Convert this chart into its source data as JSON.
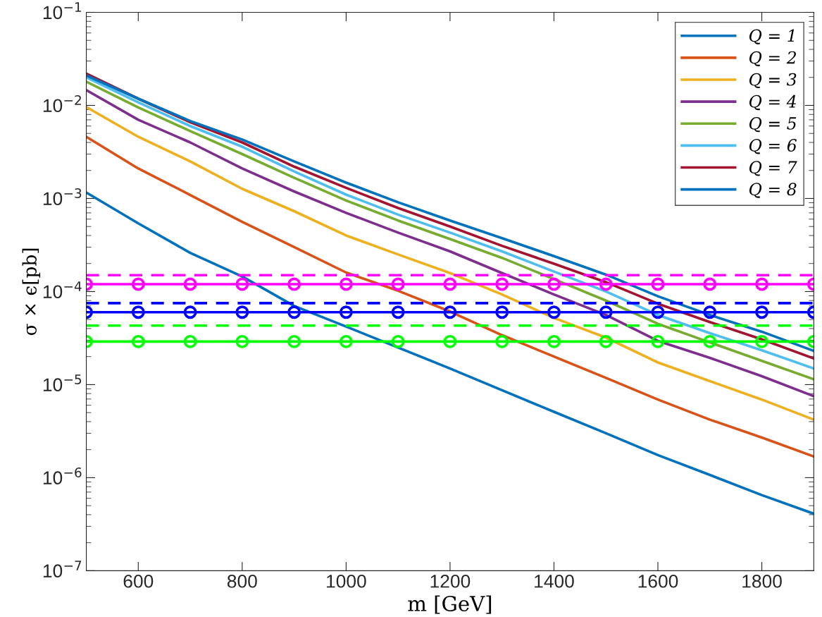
{
  "chart_data": {
    "type": "line",
    "xlabel": "m [GeV]",
    "ylabel": "σ × ϵ[pb]",
    "log": "y",
    "legend": "top right",
    "grid": false,
    "marker": "none",
    "line_style": "solid",
    "x": [
      500,
      600,
      700,
      800,
      900,
      1000,
      1100,
      1200,
      1300,
      1400,
      1500,
      1600,
      1700,
      1800,
      1900
    ],
    "xlim": [
      500,
      1900
    ],
    "xticks": [
      600,
      800,
      1000,
      1200,
      1400,
      1600,
      1800
    ],
    "ylim": [
      1e-07,
      0.1
    ],
    "yticks": [
      {
        "value": 1e-07,
        "label": "10$^{−7}$"
      },
      {
        "value": 1e-06,
        "label": "10$^{−6}$"
      },
      {
        "value": 1e-05,
        "label": "10$^{−5}$"
      },
      {
        "value": 0.0001,
        "label": "10$^{−4}$"
      },
      {
        "value": 0.001,
        "label": "10$^{−3}$"
      },
      {
        "value": 0.01,
        "label": "10$^{−2}$"
      },
      {
        "value": 0.1,
        "label": "10$^{−1}$"
      }
    ],
    "series": [
      {
        "name": "Q = 1",
        "color": "#0072bd",
        "values": [
          0.00116,
          0.00054,
          0.00026,
          0.000145,
          7e-05,
          4.2e-05,
          2.5e-05,
          1.49e-05,
          8.7e-06,
          5.1e-06,
          3e-06,
          1.75e-06,
          1.07e-06,
          6.5e-07,
          4.1e-07
        ]
      },
      {
        "name": "Q = 2",
        "color": "#d95319",
        "values": [
          0.0046,
          0.0021,
          0.00109,
          0.00056,
          0.0003,
          0.00016,
          0.000102,
          6.1e-05,
          3.4e-05,
          2e-05,
          1.18e-05,
          6.9e-06,
          4.2e-06,
          2.7e-06,
          1.69e-06
        ]
      },
      {
        "name": "Q = 3",
        "color": "#edb120",
        "values": [
          0.0096,
          0.0046,
          0.0025,
          0.00127,
          0.00073,
          0.0004,
          0.00025,
          0.000158,
          9.3e-05,
          5.2e-05,
          3.2e-05,
          1.73e-05,
          1.09e-05,
          6.9e-06,
          4.2e-06
        ]
      },
      {
        "name": "Q = 4",
        "color": "#7e2f8e",
        "values": [
          0.0146,
          0.007,
          0.004,
          0.0021,
          0.00119,
          0.0007,
          0.00043,
          0.00027,
          0.000158,
          9.3e-05,
          5.6e-05,
          2.95e-05,
          1.94e-05,
          1.23e-05,
          7.5e-06
        ]
      },
      {
        "name": "Q = 5",
        "color": "#77ac30",
        "values": [
          0.018,
          0.0095,
          0.0053,
          0.003,
          0.00167,
          0.00095,
          0.00058,
          0.000366,
          0.00023,
          0.000136,
          8e-05,
          4.5e-05,
          2.84e-05,
          1.8e-05,
          1.14e-05
        ]
      },
      {
        "name": "Q = 6",
        "color": "#4dbeee",
        "values": [
          0.02,
          0.0108,
          0.006,
          0.0036,
          0.00195,
          0.0011,
          0.00067,
          0.00043,
          0.00027,
          0.000164,
          0.0001,
          5.6e-05,
          3.57e-05,
          2.34e-05,
          1.49e-05
        ]
      },
      {
        "name": "Q = 7",
        "color": "#a2142f",
        "values": [
          0.022,
          0.0118,
          0.0066,
          0.004,
          0.0022,
          0.0013,
          0.00079,
          0.0005,
          0.00031,
          0.000199,
          0.000126,
          7.4e-05,
          4.7e-05,
          3.06e-05,
          1.91e-05
        ]
      },
      {
        "name": "Q = 8",
        "color": "#0072bd",
        "values": [
          0.021,
          0.0118,
          0.0068,
          0.0043,
          0.0025,
          0.00148,
          0.00091,
          0.00058,
          0.000375,
          0.00024,
          0.000152,
          8.9e-05,
          5.6e-05,
          3.7e-05,
          2.3e-05
        ]
      },
      {
        "color": "#ff00ff",
        "line_style": "dashed",
        "values": [
          0.00015,
          0.00015,
          0.00015,
          0.00015,
          0.00015,
          0.00015,
          0.00015,
          0.00015,
          0.00015,
          0.00015,
          0.00015,
          0.00015,
          0.00015,
          0.00015,
          0.00015
        ]
      },
      {
        "color": "#ff00ff",
        "marker": "circle",
        "values": [
          0.00012,
          0.00012,
          0.00012,
          0.00012,
          0.00012,
          0.00012,
          0.00012,
          0.00012,
          0.00012,
          0.00012,
          0.00012,
          0.00012,
          0.00012,
          0.00012,
          0.00012
        ]
      },
      {
        "color": "#0000ff",
        "line_style": "dashed",
        "values": [
          7.5e-05,
          7.5e-05,
          7.5e-05,
          7.5e-05,
          7.5e-05,
          7.5e-05,
          7.5e-05,
          7.5e-05,
          7.5e-05,
          7.5e-05,
          7.5e-05,
          7.5e-05,
          7.5e-05,
          7.5e-05,
          7.5e-05
        ]
      },
      {
        "color": "#0000ff",
        "marker": "circle",
        "values": [
          6e-05,
          6e-05,
          6e-05,
          6e-05,
          6e-05,
          6e-05,
          6e-05,
          6e-05,
          6e-05,
          6e-05,
          6e-05,
          6e-05,
          6e-05,
          6e-05,
          6e-05
        ]
      },
      {
        "color": "#00ff00",
        "line_style": "dashed",
        "values": [
          4.3e-05,
          4.3e-05,
          4.3e-05,
          4.3e-05,
          4.3e-05,
          4.3e-05,
          4.3e-05,
          4.3e-05,
          4.3e-05,
          4.3e-05,
          4.3e-05,
          4.3e-05,
          4.3e-05,
          4.3e-05,
          4.3e-05
        ]
      },
      {
        "color": "#00ff00",
        "marker": "circle",
        "values": [
          2.9e-05,
          2.9e-05,
          2.9e-05,
          2.9e-05,
          2.9e-05,
          2.9e-05,
          2.9e-05,
          2.9e-05,
          2.9e-05,
          2.9e-05,
          2.9e-05,
          2.9e-05,
          2.9e-05,
          2.9e-05,
          2.9e-05
        ]
      }
    ]
  }
}
